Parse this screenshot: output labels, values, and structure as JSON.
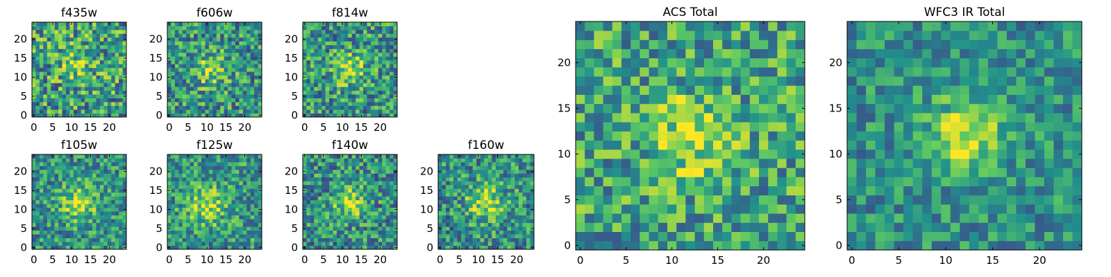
{
  "colormap": [
    "#440154",
    "#3b528b",
    "#21918c",
    "#5ec962",
    "#fde725"
  ],
  "chart_data": [
    {
      "type": "heatmap",
      "title": "f435w",
      "size": 25,
      "xticks": [
        0,
        5,
        10,
        15,
        20
      ],
      "yticks": [
        0,
        5,
        10,
        15,
        20
      ],
      "xlim": [
        0,
        25
      ],
      "ylim": [
        0,
        25
      ],
      "peak": [
        12,
        14
      ],
      "sigma": 3.5,
      "amp": 0.22,
      "noise": 0.36,
      "base": 0.55,
      "seed": 11
    },
    {
      "type": "heatmap",
      "title": "f606w",
      "size": 25,
      "xticks": [
        0,
        5,
        10,
        15,
        20
      ],
      "yticks": [
        0,
        5,
        10,
        15,
        20
      ],
      "xlim": [
        0,
        25
      ],
      "ylim": [
        0,
        25
      ],
      "peak": [
        11,
        12
      ],
      "sigma": 3.0,
      "amp": 0.32,
      "noise": 0.32,
      "base": 0.52,
      "seed": 23
    },
    {
      "type": "heatmap",
      "title": "f814w",
      "size": 25,
      "xticks": [
        0,
        5,
        10,
        15,
        20
      ],
      "yticks": [
        0,
        5,
        10,
        15,
        20
      ],
      "xlim": [
        0,
        25
      ],
      "ylim": [
        0,
        25
      ],
      "peak": [
        12,
        12
      ],
      "sigma": 3.0,
      "amp": 0.35,
      "noise": 0.32,
      "base": 0.52,
      "seed": 37
    },
    {
      "type": "heatmap",
      "title": "f105w",
      "size": 25,
      "xticks": [
        0,
        5,
        10,
        15,
        20
      ],
      "yticks": [
        0,
        5,
        10,
        15,
        20
      ],
      "xlim": [
        0,
        25
      ],
      "ylim": [
        0,
        25
      ],
      "peak": [
        12,
        12
      ],
      "sigma": 3.5,
      "amp": 0.38,
      "noise": 0.28,
      "base": 0.5,
      "seed": 41
    },
    {
      "type": "heatmap",
      "title": "f125w",
      "size": 25,
      "xticks": [
        0,
        5,
        10,
        15,
        20
      ],
      "yticks": [
        0,
        5,
        10,
        15,
        20
      ],
      "xlim": [
        0,
        25
      ],
      "ylim": [
        0,
        25
      ],
      "peak": [
        10,
        11
      ],
      "sigma": 3.5,
      "amp": 0.35,
      "noise": 0.28,
      "base": 0.52,
      "seed": 53
    },
    {
      "type": "heatmap",
      "title": "f140w",
      "size": 25,
      "xticks": [
        0,
        5,
        10,
        15,
        20
      ],
      "yticks": [
        0,
        5,
        10,
        15,
        20
      ],
      "xlim": [
        0,
        25
      ],
      "ylim": [
        0,
        25
      ],
      "peak": [
        12,
        12
      ],
      "sigma": 3.0,
      "amp": 0.38,
      "noise": 0.3,
      "base": 0.5,
      "seed": 67
    },
    {
      "type": "heatmap",
      "title": "f160w",
      "size": 25,
      "xticks": [
        0,
        5,
        10,
        15,
        20
      ],
      "yticks": [
        0,
        5,
        10,
        15,
        20
      ],
      "xlim": [
        0,
        25
      ],
      "ylim": [
        0,
        25
      ],
      "peak": [
        12,
        12
      ],
      "sigma": 3.5,
      "amp": 0.38,
      "noise": 0.3,
      "base": 0.5,
      "seed": 79
    },
    {
      "type": "heatmap",
      "title": "ACS Total",
      "size": 25,
      "xticks": [
        0,
        5,
        10,
        15,
        20
      ],
      "yticks": [
        0,
        5,
        10,
        15,
        20
      ],
      "xlim": [
        0,
        25
      ],
      "ylim": [
        0,
        25
      ],
      "peak": [
        12,
        12
      ],
      "sigma": 3.0,
      "amp": 0.32,
      "noise": 0.3,
      "base": 0.58,
      "seed": 97
    },
    {
      "type": "heatmap",
      "title": "WFC3 IR Total",
      "size": 25,
      "xticks": [
        0,
        5,
        10,
        15,
        20
      ],
      "yticks": [
        0,
        5,
        10,
        15,
        20
      ],
      "xlim": [
        0,
        25
      ],
      "ylim": [
        0,
        25
      ],
      "peak": [
        12,
        12
      ],
      "sigma": 2.8,
      "amp": 0.42,
      "noise": 0.22,
      "base": 0.5,
      "seed": 113
    }
  ]
}
